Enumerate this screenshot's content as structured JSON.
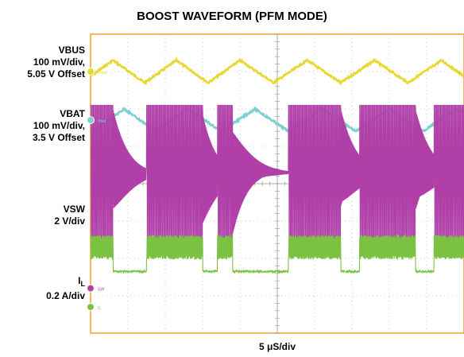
{
  "chart_data": {
    "type": "line",
    "title": "BOOST WAVEFORM (PFM MODE)",
    "xlabel": "5 μS/div",
    "x_divisions": 10,
    "y_divisions": 8,
    "grid": true,
    "channels": [
      {
        "id": "vbus",
        "name": "VBUS",
        "scale": "100 mV/div,",
        "offset": "5.05 V Offset",
        "marker": "Vbus",
        "color": "#e8d832",
        "kind": "ripple",
        "baseline_div": 1.0,
        "amplitude_div": 0.6,
        "peaks_div": [
          0.6,
          2.3,
          4.0,
          5.8,
          7.6,
          9.4
        ]
      },
      {
        "id": "vbat",
        "name": "VBAT",
        "scale": "100 mV/div,",
        "offset": "3.5 V Offset",
        "marker": "Vbat",
        "color": "#7ecfcf",
        "kind": "ripple",
        "baseline_div": 2.3,
        "amplitude_div": 0.6,
        "peaks_div": [
          0.9,
          2.6,
          4.4,
          6.2,
          8.0,
          9.8
        ]
      },
      {
        "id": "vsw",
        "name": "VSW",
        "scale": "2 V/div",
        "marker": "SW",
        "color": "#b040a8",
        "kind": "switching",
        "level_div": 3.7,
        "amplitude_div": 1.8,
        "bursts_div": [
          [
            0.0,
            0.6
          ],
          [
            1.5,
            3.0
          ],
          [
            3.4,
            3.8
          ],
          [
            5.3,
            6.7
          ],
          [
            7.2,
            8.7
          ],
          [
            9.2,
            10.0
          ]
        ]
      },
      {
        "id": "il",
        "name": "I",
        "name_sub": "L",
        "scale": "0.2 A/div",
        "marker": "IL",
        "color": "#7cc242",
        "kind": "current",
        "level_div": 6.35,
        "high_div": 5.7,
        "amplitude_div": 0.55,
        "bursts_div": [
          [
            0.0,
            0.6
          ],
          [
            1.5,
            3.0
          ],
          [
            3.4,
            3.8
          ],
          [
            5.3,
            6.7
          ],
          [
            7.2,
            8.7
          ],
          [
            9.2,
            10.0
          ]
        ]
      }
    ]
  }
}
